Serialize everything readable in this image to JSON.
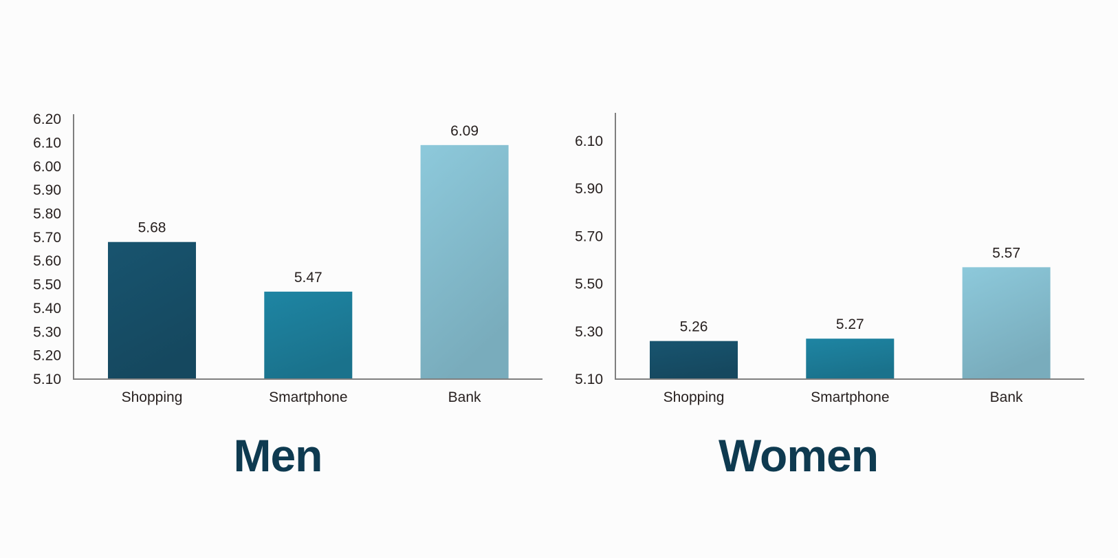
{
  "page": {
    "background": "#fcfcfc"
  },
  "colors": {
    "title_text": "#0e3a50",
    "label_text": "#27201f",
    "axis_line": "#7f7f7f",
    "bar_dark_teal": "#17506a",
    "bar_medium_teal": "#1d7f9b",
    "bar_light_blue": "#86bfd1"
  },
  "chart_data": [
    {
      "type": "bar",
      "title": "Men",
      "categories": [
        "Shopping",
        "Smartphone",
        "Bank"
      ],
      "values": [
        5.68,
        5.47,
        6.09
      ],
      "value_labels": [
        "5.68",
        "5.47",
        "6.09"
      ],
      "bar_colors": [
        "#17506a",
        "#1d7f9b",
        "#86bfd1"
      ],
      "ylim": [
        5.1,
        6.2
      ],
      "ytick_step": 0.1,
      "ytick_labels": [
        "6.20",
        "6.10",
        "6.00",
        "5.90",
        "5.80",
        "5.70",
        "5.60",
        "5.50",
        "5.40",
        "5.30",
        "5.20",
        "5.10"
      ],
      "xlabel": "",
      "ylabel": "",
      "grid": false,
      "legend": null
    },
    {
      "type": "bar",
      "title": "Women",
      "categories": [
        "Shopping",
        "Smartphone",
        "Bank"
      ],
      "values": [
        5.26,
        5.27,
        5.57
      ],
      "value_labels": [
        "5.26",
        "5.27",
        "5.57"
      ],
      "bar_colors": [
        "#17506a",
        "#1d7f9b",
        "#86bfd1"
      ],
      "ylim": [
        5.1,
        6.1
      ],
      "ytick_step": 0.2,
      "ytick_labels": [
        "6.10",
        "5.90",
        "5.70",
        "5.50",
        "5.30",
        "5.10"
      ],
      "xlabel": "",
      "ylabel": "",
      "grid": false,
      "legend": null
    }
  ]
}
